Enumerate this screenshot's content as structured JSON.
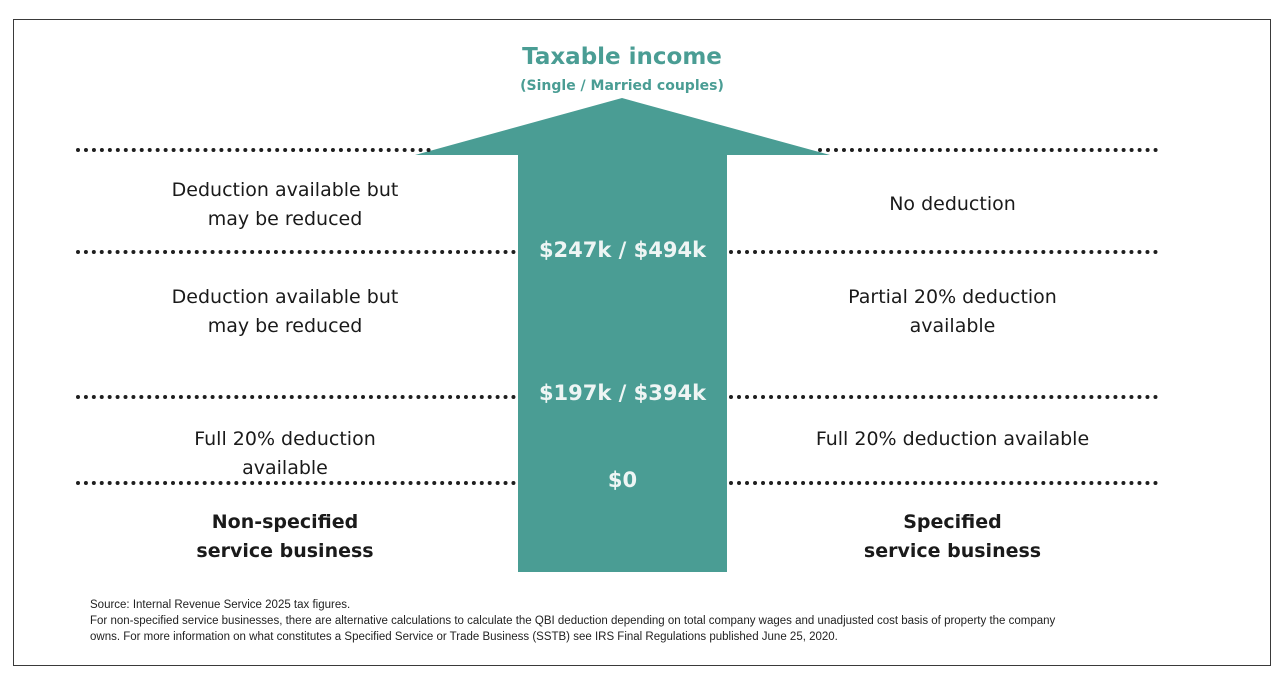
{
  "header": {
    "title": "Taxable income",
    "subtitle": "(Single / Married couples)"
  },
  "thresholds": {
    "top": "$247k / $494k",
    "middle": "$197k / $394k",
    "bottom": "$0"
  },
  "non_specified": {
    "heading": [
      "Non-specified",
      "service business"
    ],
    "tier_high": [
      "Deduction available but",
      "may be reduced"
    ],
    "tier_mid": [
      "Deduction available but",
      "may be reduced"
    ],
    "tier_low": [
      "Full 20% deduction",
      "available"
    ]
  },
  "specified": {
    "heading": [
      "Specified",
      "service business"
    ],
    "tier_high": [
      "No deduction"
    ],
    "tier_mid": [
      "Partial 20% deduction",
      "available"
    ],
    "tier_low": [
      "Full 20% deduction available"
    ]
  },
  "footnote": {
    "source": "Source: Internal Revenue Service 2025 tax figures.",
    "note_line1": "For non-specified service businesses, there are alternative calculations to calculate the QBI deduction depending on total company wages and unadjusted cost basis of property the company",
    "note_line2": "owns. For more information on what constitutes a Specified Service or Trade Business (SSTB) see IRS Final Regulations published June 25, 2020."
  },
  "colors": {
    "arrow": "#4a9d94",
    "threshold_text": "#eef5f4",
    "title": "#4a9d94"
  }
}
